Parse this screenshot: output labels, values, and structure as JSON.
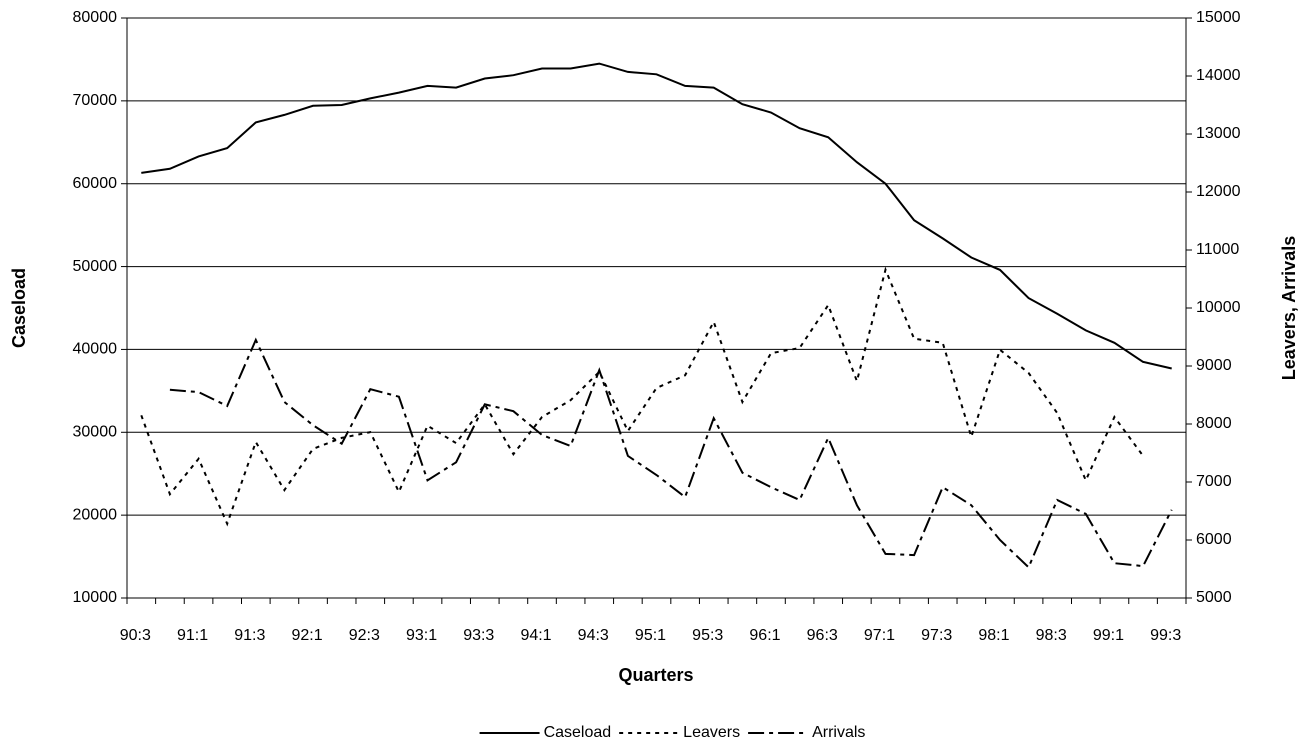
{
  "chart_data": {
    "type": "line",
    "xlabel": "Quarters",
    "ylabel": "Caseload",
    "y2label": "Leavers, Arrivals",
    "categories": [
      "90:3",
      null,
      "91:1",
      null,
      "91:3",
      null,
      "92:1",
      null,
      "92:3",
      null,
      "93:1",
      null,
      "93:3",
      null,
      "94:1",
      null,
      "94:3",
      null,
      "95:1",
      null,
      "95:3",
      null,
      "96:1",
      null,
      "96:3",
      null,
      "97:1",
      null,
      "97:3",
      null,
      "98:1",
      null,
      "98:3",
      null,
      "99:1",
      null,
      "99:3"
    ],
    "ylim": [
      10000,
      80000
    ],
    "yticks": [
      10000,
      20000,
      30000,
      40000,
      50000,
      60000,
      70000,
      80000
    ],
    "y2lim": [
      5000,
      15000
    ],
    "y2ticks": [
      5000,
      6000,
      7000,
      8000,
      9000,
      10000,
      11000,
      12000,
      13000,
      14000,
      15000
    ],
    "grid": true,
    "legend": "bottom",
    "series": [
      {
        "name": "Caseload",
        "color": "#000000",
        "dash": "solid",
        "values": [
          61300,
          61800,
          63300,
          64300,
          67400,
          68300,
          69400,
          69500,
          70300,
          71000,
          71800,
          71600,
          72700,
          73100,
          73900,
          73900,
          74500,
          73500,
          73200,
          71800,
          71600,
          69600,
          68600,
          66700,
          65600,
          62600,
          60000,
          55600,
          53400,
          51100,
          49600,
          46200,
          44300,
          42300,
          40800,
          38500,
          37700
        ]
      },
      {
        "name": "Leavers",
        "color": "#000000",
        "dash": "dotted",
        "axis": "y2",
        "values": [
          8150,
          6790,
          7400,
          6280,
          7690,
          6860,
          7570,
          7760,
          7860,
          6830,
          7970,
          7670,
          8340,
          7480,
          8120,
          8410,
          8900,
          7880,
          8620,
          8840,
          9760,
          8380,
          9220,
          9310,
          10050,
          8740,
          10660,
          9470,
          9400,
          7780,
          9280,
          8880,
          8190,
          7030,
          8120,
          7450,
          null
        ]
      },
      {
        "name": "Arrivals",
        "color": "#000000",
        "dash": "dashdot",
        "axis": "y2",
        "values": [
          null,
          8590,
          8550,
          8310,
          9450,
          8380,
          7980,
          7660,
          8600,
          8470,
          7030,
          7340,
          8340,
          8220,
          7810,
          7620,
          8930,
          7450,
          7120,
          6740,
          8100,
          7160,
          6910,
          6690,
          7760,
          6600,
          5760,
          5740,
          6910,
          6600,
          6000,
          5530,
          6690,
          6450,
          5600,
          5550,
          6520
        ]
      }
    ]
  }
}
